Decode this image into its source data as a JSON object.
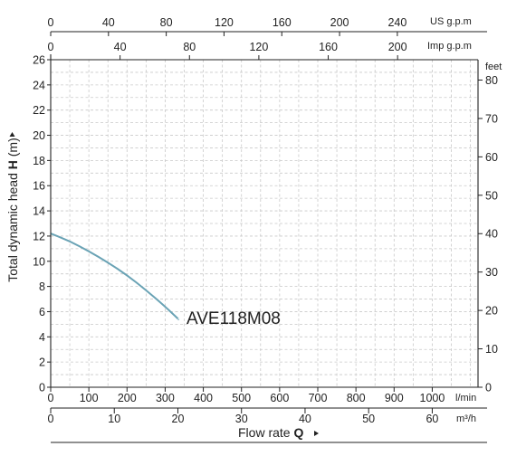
{
  "chart_data": {
    "type": "line",
    "series": [
      {
        "name": "AVE118M08",
        "color": "#6aa3b5",
        "x": [
          0,
          50,
          100,
          150,
          200,
          250,
          300,
          335
        ],
        "y": [
          12.2,
          11.6,
          10.8,
          9.9,
          8.9,
          7.7,
          6.4,
          5.4
        ]
      }
    ],
    "xlim": [
      0,
      1120
    ],
    "ylim": [
      0,
      26
    ],
    "grid": true,
    "left_axis": {
      "label_prefix": "Total dynamic head ",
      "label_bold": "H",
      "label_suffix": " (m)",
      "ticks": [
        "0",
        "2",
        "4",
        "6",
        "8",
        "10",
        "12",
        "14",
        "16",
        "18",
        "20",
        "22",
        "24",
        "26"
      ]
    },
    "right_axis": {
      "unit": "feet",
      "ticks": [
        "0",
        "10",
        "20",
        "30",
        "40",
        "50",
        "60",
        "70",
        "80"
      ]
    },
    "bottom_axis_lpm": {
      "unit": "l/min",
      "ticks": [
        "0",
        "100",
        "200",
        "300",
        "400",
        "500",
        "600",
        "700",
        "800",
        "900",
        "1000"
      ]
    },
    "bottom_axis_m3h": {
      "unit": "m³/h",
      "ticks": [
        "0",
        "10",
        "20",
        "30",
        "40",
        "50",
        "60"
      ]
    },
    "xlabel_prefix": "Flow rate ",
    "xlabel_bold": "Q",
    "top_axis_us": {
      "unit": "US g.p.m",
      "ticks": [
        "0",
        "40",
        "80",
        "120",
        "160",
        "200",
        "240"
      ]
    },
    "top_axis_imp": {
      "unit": "Imp g.p.m",
      "ticks": [
        "0",
        "40",
        "80",
        "120",
        "160",
        "200"
      ]
    }
  }
}
